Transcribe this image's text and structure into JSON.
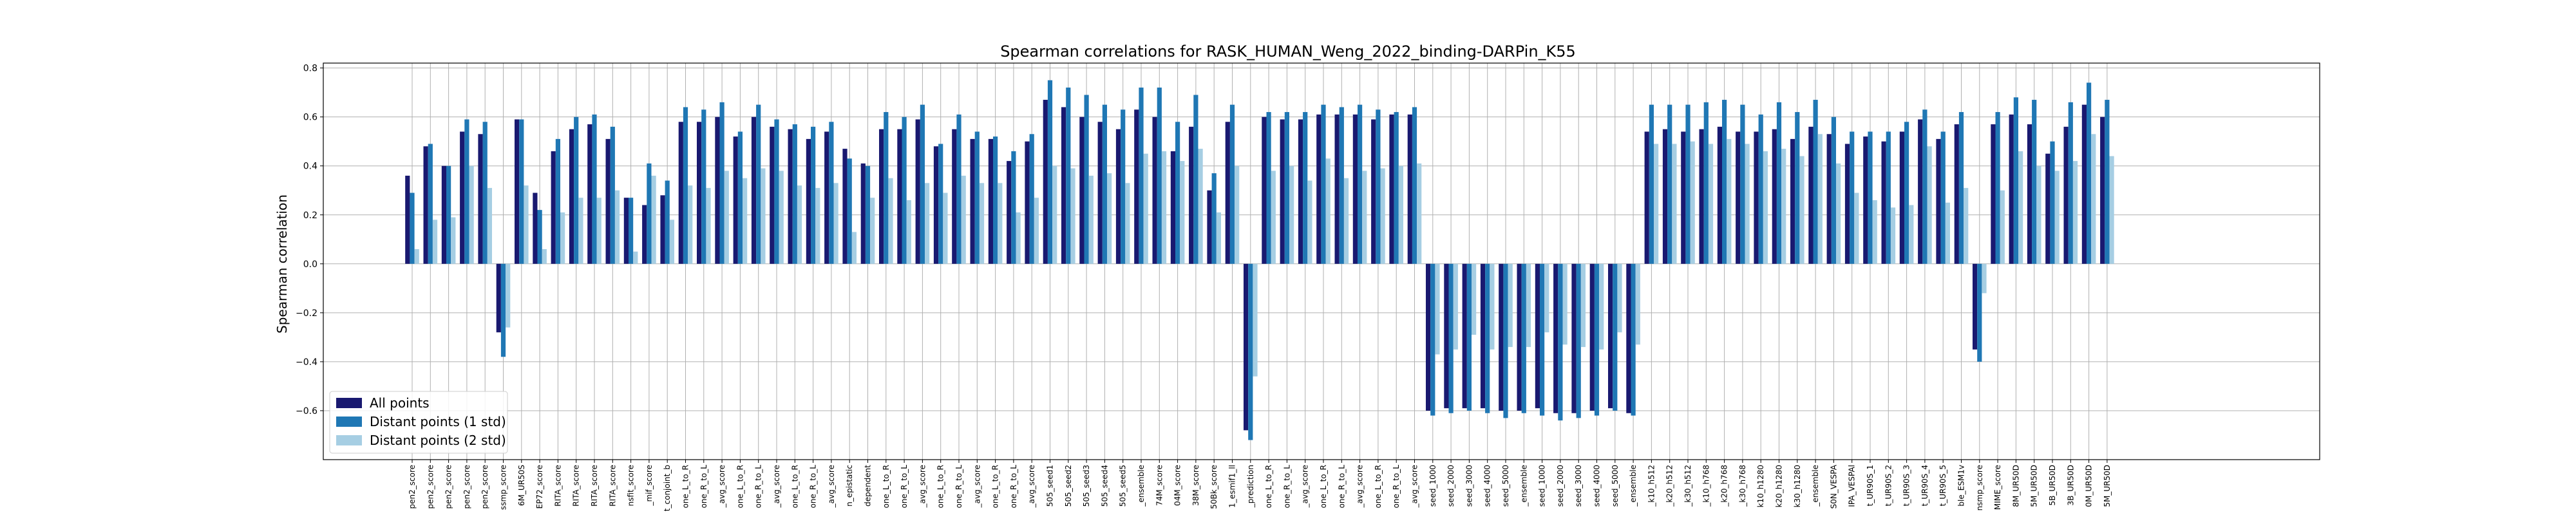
{
  "chart_data": {
    "type": "bar",
    "title": "Spearman correlations for RASK_HUMAN_Weng_2022_binding-DARPin_K55",
    "xlabel": "",
    "ylabel": "Spearman correlation",
    "ylim": [
      -0.8,
      0.82
    ],
    "yticks": [
      -0.6,
      -0.4,
      -0.2,
      0.0,
      0.2,
      0.4,
      0.6,
      0.8
    ],
    "ytick_labels": [
      "−0.6",
      "−0.4",
      "−0.2",
      "0.0",
      "0.2",
      "0.4",
      "0.6",
      "0.8"
    ],
    "grid": true,
    "legend_position": "lower-left",
    "colors": [
      "#191970",
      "#1f77b4",
      "#a6cee3"
    ],
    "categories": [
      "pen2_score",
      "pen2_score",
      "pen2_score",
      "pen2_score",
      "pen2_score",
      "ssmp_score",
      "6M_UR50S",
      "EP72_score",
      "RITA_score",
      "RITA_score",
      "RITA_score",
      "RITA_score",
      "nsfit_score",
      "_mif_score",
      "t_conjoint_b",
      "one_L_to_R",
      "one_R_to_L",
      "_avg_score",
      "one_L_to_R",
      "one_R_to_L",
      "_avg_score",
      "one_L_to_R",
      "one_R_to_L",
      "_avg_score",
      "n_epistatic",
      "dependent",
      "one_L_to_R",
      "one_R_to_L",
      "_avg_score",
      "one_L_to_R",
      "one_R_to_L",
      "_avg_score",
      "one_L_to_R",
      "one_R_to_L",
      "_avg_score",
      "505_seed1",
      "505_seed2",
      "505_seed3",
      "505_seed4",
      "505_seed5",
      "_ensemble",
      "74M_score",
      "04M_score",
      "38M_score",
      "50Bk_score",
      "1_esmif1_ll",
      "_prediction",
      "one_L_to_R",
      "one_R_to_L",
      "_avg_score",
      "one_L_to_R",
      "one_R_to_L",
      "_avg_score",
      "one_L_to_R",
      "one_R_to_L",
      "_avg_score",
      "seed_1000",
      "seed_2000",
      "seed_3000",
      "seed_4000",
      "seed_5000",
      "_ensemble",
      "seed_1000",
      "seed_2000",
      "seed_3000",
      "seed_4000",
      "seed_5000",
      "_ensemble",
      "_k10_h512",
      "_k20_h512",
      "_k30_h512",
      "_k10_h768",
      "_k20_h768",
      "_k30_h768",
      "k10_h1280",
      "k20_h1280",
      "k30_h1280",
      "_ensemble",
      "S0N_VESPA",
      "IPA_VESPAl",
      "t_UR90S_1",
      "t_UR90S_2",
      "t_UR90S_3",
      "t_UR90S_4",
      "t_UR90S_5",
      "ble_ESM1v",
      "nsmp_score",
      "MIME_score",
      "8M_UR50D",
      "5M_UR50D",
      "5B_UR50D",
      "3B_UR50D",
      "0M_UR50D",
      "5M_UR50D"
    ],
    "series": [
      {
        "name": "All points",
        "values": [
          0.36,
          0.48,
          0.4,
          0.54,
          0.53,
          -0.28,
          0.59,
          0.29,
          0.46,
          0.55,
          0.57,
          0.51,
          0.27,
          0.24,
          0.28,
          0.58,
          0.58,
          0.6,
          0.52,
          0.6,
          0.56,
          0.55,
          0.51,
          0.54,
          0.47,
          0.41,
          0.55,
          0.55,
          0.59,
          0.48,
          0.55,
          0.51,
          0.51,
          0.42,
          0.5,
          0.67,
          0.64,
          0.6,
          0.58,
          0.55,
          0.63,
          0.6,
          0.46,
          0.56,
          0.3,
          0.58,
          -0.68,
          0.6,
          0.59,
          0.59,
          0.61,
          0.61,
          0.61,
          0.59,
          0.61,
          0.61,
          -0.6,
          -0.59,
          -0.59,
          -0.59,
          -0.6,
          -0.6,
          -0.59,
          -0.61,
          -0.61,
          -0.6,
          -0.59,
          -0.61,
          0.54,
          0.55,
          0.54,
          0.55,
          0.56,
          0.54,
          0.54,
          0.55,
          0.51,
          0.56,
          0.53,
          0.49,
          0.52,
          0.5,
          0.54,
          0.59,
          0.51,
          0.57,
          -0.35,
          0.57,
          0.61,
          0.57,
          0.45,
          0.56,
          0.65,
          0.6
        ]
      },
      {
        "name": "Distant points (1 std)",
        "values": [
          0.29,
          0.49,
          0.4,
          0.59,
          0.58,
          -0.38,
          0.59,
          0.22,
          0.51,
          0.6,
          0.61,
          0.56,
          0.27,
          0.41,
          0.34,
          0.64,
          0.63,
          0.66,
          0.54,
          0.65,
          0.59,
          0.57,
          0.56,
          0.58,
          0.43,
          0.4,
          0.62,
          0.6,
          0.65,
          0.49,
          0.61,
          0.54,
          0.52,
          0.46,
          0.53,
          0.75,
          0.72,
          0.69,
          0.65,
          0.63,
          0.72,
          0.72,
          0.58,
          0.69,
          0.37,
          0.65,
          -0.72,
          0.62,
          0.62,
          0.62,
          0.65,
          0.64,
          0.65,
          0.63,
          0.62,
          0.64,
          -0.62,
          -0.61,
          -0.6,
          -0.61,
          -0.63,
          -0.61,
          -0.62,
          -0.64,
          -0.63,
          -0.62,
          -0.6,
          -0.62,
          0.65,
          0.65,
          0.65,
          0.66,
          0.67,
          0.65,
          0.61,
          0.66,
          0.62,
          0.67,
          0.6,
          0.54,
          0.54,
          0.54,
          0.58,
          0.63,
          0.54,
          0.62,
          -0.4,
          0.62,
          0.68,
          0.67,
          0.5,
          0.66,
          0.74,
          0.67
        ]
      },
      {
        "name": "Distant points (2 std)",
        "values": [
          0.06,
          0.18,
          0.19,
          0.4,
          0.31,
          -0.26,
          0.32,
          0.06,
          0.21,
          0.27,
          0.27,
          0.3,
          0.05,
          0.36,
          0.18,
          0.32,
          0.31,
          0.38,
          0.35,
          0.39,
          0.38,
          0.32,
          0.31,
          0.33,
          0.13,
          0.27,
          0.35,
          0.26,
          0.33,
          0.29,
          0.36,
          0.33,
          0.33,
          0.21,
          0.27,
          0.4,
          0.39,
          0.36,
          0.37,
          0.33,
          0.45,
          0.46,
          0.42,
          0.47,
          0.21,
          0.4,
          -0.46,
          0.38,
          0.4,
          0.34,
          0.43,
          0.35,
          0.38,
          0.39,
          0.4,
          0.41,
          -0.37,
          -0.35,
          -0.29,
          -0.35,
          -0.34,
          -0.34,
          -0.28,
          -0.33,
          -0.34,
          -0.35,
          -0.28,
          -0.33,
          0.49,
          0.49,
          0.5,
          0.49,
          0.51,
          0.49,
          0.46,
          0.47,
          0.44,
          0.53,
          0.41,
          0.29,
          0.26,
          0.23,
          0.24,
          0.48,
          0.25,
          0.31,
          -0.12,
          0.3,
          0.46,
          0.4,
          0.38,
          0.42,
          0.53,
          0.44
        ]
      }
    ]
  }
}
